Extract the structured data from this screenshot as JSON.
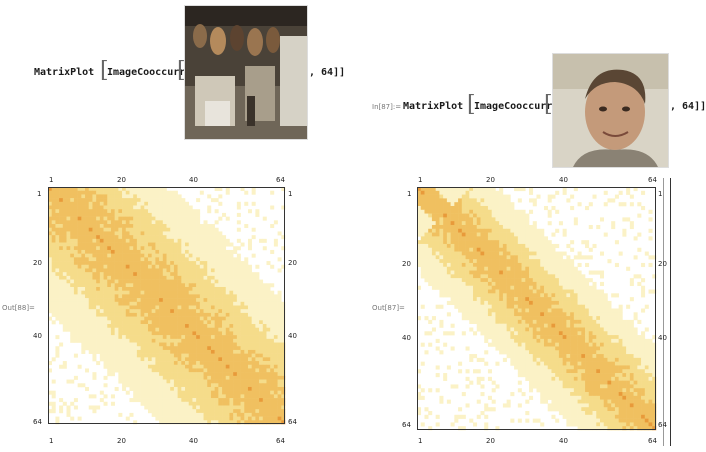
{
  "cell88": {
    "func": "MatrixPlot",
    "inner": "ImageCooccurrence",
    "arg": ", 64]]",
    "out_label": "Out[88]=",
    "image_icon": "guitar-shop-photo-icon"
  },
  "cell87": {
    "in_label": "In[87]:=",
    "func": "MatrixPlot",
    "inner": "ImageCooccurrence",
    "arg": ", 64]]",
    "out_label": "Out[87]=",
    "image_icon": "portrait-photo-icon"
  },
  "plot_left": {
    "top_ticks": [
      "1",
      "20",
      "40",
      "64"
    ],
    "bottom_ticks": [
      "1",
      "20",
      "40",
      "64"
    ],
    "left_ticks": [
      "1",
      "20",
      "40",
      "64"
    ],
    "right_ticks": [
      "1",
      "20",
      "40",
      "64"
    ]
  },
  "plot_right": {
    "top_ticks": [
      "1",
      "20",
      "40",
      "64"
    ],
    "bottom_ticks": [
      "1",
      "20",
      "40",
      "64"
    ],
    "left_ticks": [
      "1",
      "20",
      "40",
      "64"
    ],
    "right_ticks": [
      "1",
      "20",
      "40",
      "64"
    ]
  },
  "colors": {
    "light": "#fbf2c6",
    "mid": "#f5dc8a",
    "strong": "#f0c060",
    "diagonal": "#e89a3a",
    "frame": "#333333"
  }
}
